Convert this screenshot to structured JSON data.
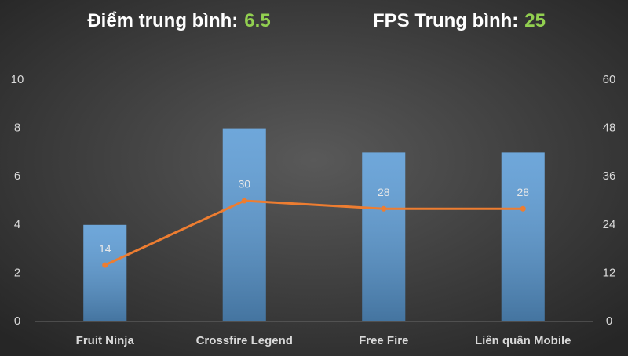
{
  "chart_data": {
    "type": "combo",
    "annotations": [
      {
        "label": "Điểm trung bình:",
        "value": 6.5
      },
      {
        "label": "FPS Trung bình:",
        "value": 25
      }
    ],
    "annotation_value_color": "#92d050",
    "categories": [
      "Fruit Ninja",
      "Crossfire Legend",
      "Free Fire",
      "Liên quân Mobile"
    ],
    "series": [
      {
        "type": "bar",
        "color": "#5b9bd5",
        "values": [
          4,
          8,
          7,
          7
        ]
      },
      {
        "type": "line",
        "color": "#ed7d31",
        "axis": "y2",
        "values": [
          14,
          30,
          28,
          28
        ],
        "data_labels": true
      }
    ],
    "ylim": [
      0,
      10
    ],
    "yticks": [
      0,
      2,
      4,
      6,
      8,
      10
    ],
    "y2lim": [
      0,
      60
    ],
    "y2ticks": [
      0,
      12,
      24,
      36,
      48,
      60
    ],
    "grid": false
  }
}
